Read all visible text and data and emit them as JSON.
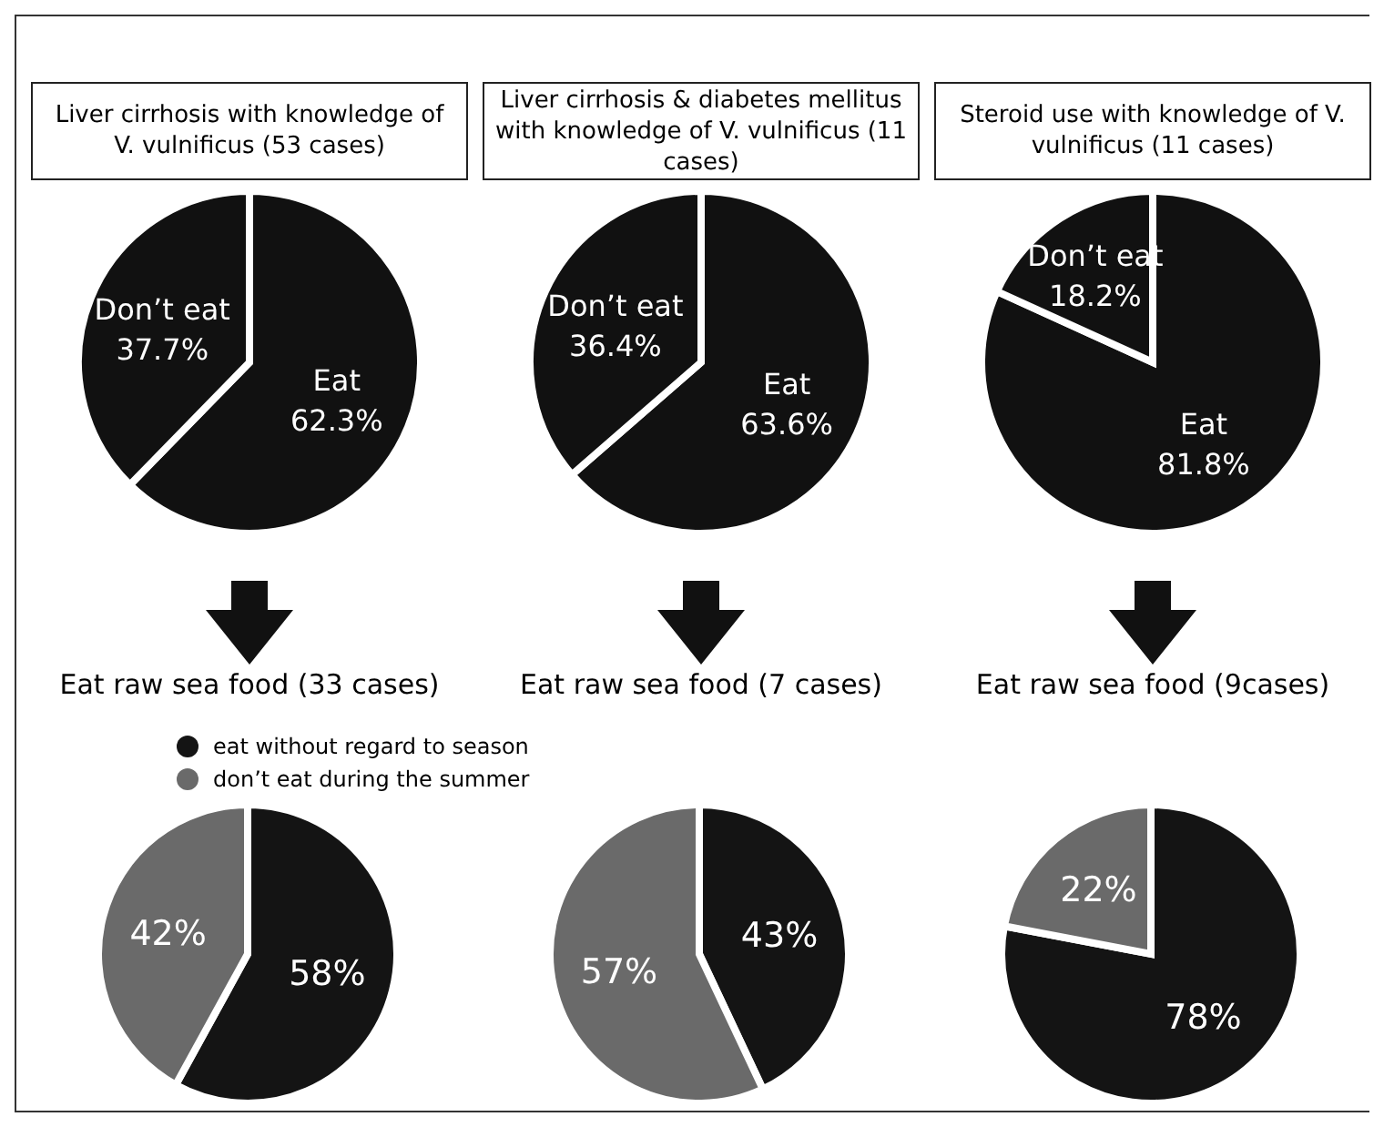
{
  "chart_data": [
    {
      "type": "pie",
      "title": "Liver cirrhosis with knowledge of V. vulnificus (53 cases)",
      "categories": [
        "Eat",
        "Don’t eat"
      ],
      "values": [
        62.3,
        37.7
      ],
      "colors": [
        "#111111",
        "#111111"
      ],
      "value_labels": [
        "62.3%",
        "37.7%"
      ]
    },
    {
      "type": "pie",
      "title": "Liver cirrhosis & diabetes mellitus with knowledge of V. vulnificus (11 cases)",
      "categories": [
        "Eat",
        "Don’t eat"
      ],
      "values": [
        63.6,
        36.4
      ],
      "colors": [
        "#111111",
        "#111111"
      ],
      "value_labels": [
        "63.6%",
        "36.4%"
      ]
    },
    {
      "type": "pie",
      "title": "Steroid use with knowledge of V. vulnificus (11 cases)",
      "categories": [
        "Eat",
        "Don’t eat"
      ],
      "values": [
        81.8,
        18.2
      ],
      "colors": [
        "#111111",
        "#111111"
      ],
      "value_labels": [
        "81.8%",
        "18.2%"
      ]
    },
    {
      "type": "pie",
      "title": "Eat raw sea food (33 cases)",
      "categories": [
        "eat without regard to season",
        "don’t eat during the summer"
      ],
      "values": [
        58,
        42
      ],
      "colors": [
        "#141414",
        "#6a6a6a"
      ],
      "value_labels": [
        "58%",
        "42%"
      ],
      "legend": "top right"
    },
    {
      "type": "pie",
      "title": "Eat raw sea food (7 cases)",
      "categories": [
        null,
        null
      ],
      "values": [
        43,
        57
      ],
      "colors": [
        "#141414",
        "#6a6a6a"
      ],
      "value_labels": [
        "43%",
        "57%"
      ]
    },
    {
      "type": "pie",
      "title": "Eat raw sea food (9cases)",
      "categories": [
        null,
        null
      ],
      "values": [
        78,
        22
      ],
      "colors": [
        "#141414",
        "#6a6a6a"
      ],
      "value_labels": [
        "78%",
        "22%"
      ]
    }
  ]
}
